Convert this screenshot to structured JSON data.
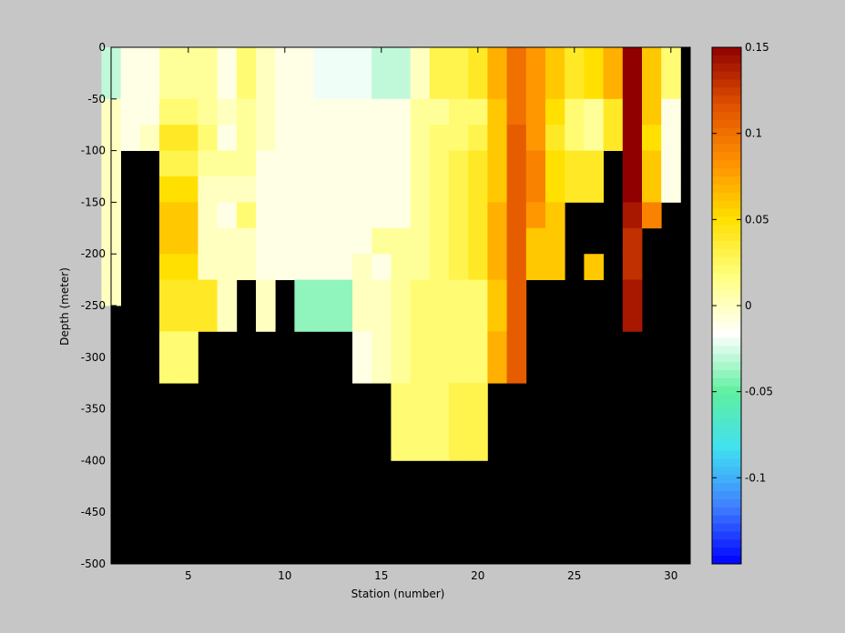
{
  "chart_data": {
    "type": "heatmap",
    "title": "",
    "xlabel": "Station (number)",
    "ylabel": "Depth (meter)",
    "xlim": [
      1,
      31
    ],
    "ylim": [
      -500,
      0
    ],
    "xticks": [
      5,
      10,
      15,
      20,
      25,
      30
    ],
    "yticks": [
      0,
      -50,
      -100,
      -150,
      -200,
      -250,
      -300,
      -350,
      -400,
      -450,
      -500
    ],
    "stations": [
      1,
      2,
      3,
      4,
      5,
      6,
      7,
      8,
      9,
      10,
      11,
      12,
      13,
      14,
      15,
      16,
      17,
      18,
      19,
      20,
      21,
      22,
      23,
      24,
      25,
      26,
      27,
      28,
      29,
      30
    ],
    "depth_bin_size_m": 25,
    "depth_rows_top_to_bottom": [
      "0 to -25",
      "-25 to -50",
      "-50 to -75",
      "-75 to -100",
      "-100 to -125",
      "-125 to -150",
      "-150 to -175",
      "-175 to -200",
      "-200 to -225",
      "-225 to -250",
      "-250 to -275",
      "-275 to -300",
      "-300 to -325",
      "-325 to -350",
      "-350 to -375",
      "-375 to -400"
    ],
    "values": [
      [
        -0.03,
        -0.01,
        -0.01,
        0.01,
        0.01,
        0.01,
        -0.01,
        0.02,
        0.0,
        -0.01,
        -0.01,
        -0.02,
        -0.02,
        -0.02,
        -0.03,
        -0.03,
        0.0,
        0.03,
        0.03,
        0.04,
        0.07,
        0.1,
        0.08,
        0.06,
        0.04,
        0.05,
        0.07,
        0.15,
        0.06,
        0.02
      ],
      [
        -0.03,
        -0.01,
        -0.01,
        0.01,
        0.01,
        0.01,
        -0.01,
        0.02,
        0.0,
        -0.01,
        -0.01,
        -0.02,
        -0.02,
        -0.02,
        -0.03,
        -0.03,
        0.0,
        0.03,
        0.03,
        0.04,
        0.07,
        0.1,
        0.08,
        0.06,
        0.04,
        0.05,
        0.07,
        0.15,
        0.06,
        0.02
      ],
      [
        0.0,
        -0.01,
        -0.01,
        0.02,
        0.02,
        0.01,
        0.0,
        0.01,
        0.0,
        -0.01,
        -0.01,
        -0.01,
        -0.01,
        -0.01,
        -0.01,
        -0.01,
        0.01,
        0.01,
        0.02,
        0.02,
        0.06,
        0.1,
        0.08,
        0.05,
        0.02,
        0.01,
        0.04,
        0.15,
        0.06,
        -0.01
      ],
      [
        0.0,
        -0.01,
        0.0,
        0.04,
        0.04,
        0.02,
        -0.01,
        0.01,
        0.0,
        -0.01,
        -0.01,
        -0.01,
        -0.01,
        -0.01,
        -0.01,
        -0.01,
        0.01,
        0.02,
        0.02,
        0.03,
        0.06,
        0.11,
        0.08,
        0.04,
        0.02,
        0.01,
        0.04,
        0.15,
        0.05,
        -0.01
      ],
      [
        0.0,
        null,
        null,
        0.03,
        0.03,
        0.01,
        0.01,
        0.01,
        -0.01,
        -0.01,
        -0.01,
        -0.01,
        -0.01,
        -0.01,
        -0.01,
        -0.01,
        0.01,
        0.02,
        0.03,
        0.04,
        0.06,
        0.11,
        0.09,
        0.05,
        0.04,
        0.04,
        null,
        0.15,
        0.06,
        -0.01
      ],
      [
        0.0,
        null,
        null,
        0.05,
        0.05,
        0.0,
        0.0,
        0.0,
        -0.01,
        -0.01,
        -0.01,
        -0.01,
        -0.01,
        -0.01,
        -0.01,
        -0.01,
        0.01,
        0.02,
        0.03,
        0.04,
        0.06,
        0.11,
        0.09,
        0.05,
        0.04,
        0.04,
        null,
        0.15,
        0.06,
        -0.01
      ],
      [
        0.0,
        null,
        null,
        0.06,
        0.06,
        0.0,
        -0.01,
        0.02,
        -0.01,
        -0.01,
        -0.01,
        -0.01,
        -0.01,
        -0.01,
        -0.01,
        -0.01,
        0.01,
        0.02,
        0.03,
        0.04,
        0.07,
        0.11,
        0.08,
        0.06,
        null,
        null,
        null,
        0.14,
        0.09,
        null
      ],
      [
        0.0,
        null,
        null,
        0.06,
        0.06,
        0.0,
        0.0,
        0.0,
        -0.01,
        -0.01,
        -0.01,
        -0.01,
        -0.01,
        -0.01,
        0.01,
        0.01,
        0.01,
        0.02,
        0.03,
        0.04,
        0.07,
        0.11,
        0.06,
        0.06,
        null,
        null,
        null,
        0.13,
        null,
        null
      ],
      [
        0.0,
        null,
        null,
        0.05,
        0.05,
        0.0,
        0.0,
        0.0,
        -0.01,
        -0.01,
        -0.01,
        -0.01,
        -0.01,
        0.0,
        -0.01,
        0.01,
        0.01,
        0.02,
        0.03,
        0.04,
        0.07,
        0.11,
        0.06,
        0.06,
        null,
        0.06,
        null,
        0.13,
        null,
        null
      ],
      [
        0.0,
        null,
        null,
        0.04,
        0.04,
        0.04,
        0.0,
        null,
        0.0,
        null,
        -0.04,
        -0.04,
        -0.04,
        0.0,
        0.0,
        0.01,
        0.02,
        0.02,
        0.02,
        0.02,
        0.06,
        0.11,
        null,
        null,
        null,
        null,
        null,
        0.14,
        null,
        null
      ],
      [
        null,
        null,
        null,
        0.04,
        0.04,
        0.04,
        0.0,
        null,
        0.0,
        null,
        -0.04,
        -0.04,
        -0.04,
        0.0,
        0.0,
        0.01,
        0.02,
        0.02,
        0.02,
        0.02,
        0.06,
        0.11,
        null,
        null,
        null,
        null,
        null,
        0.14,
        null,
        null
      ],
      [
        null,
        null,
        null,
        0.02,
        0.02,
        null,
        null,
        null,
        null,
        null,
        null,
        null,
        null,
        -0.01,
        0.0,
        0.01,
        0.02,
        0.02,
        0.02,
        0.02,
        0.07,
        0.11,
        null,
        null,
        null,
        null,
        null,
        null,
        null,
        null
      ],
      [
        null,
        null,
        null,
        0.02,
        0.02,
        null,
        null,
        null,
        null,
        null,
        null,
        null,
        null,
        -0.01,
        0.0,
        0.01,
        0.02,
        0.02,
        0.02,
        0.02,
        0.07,
        0.11,
        null,
        null,
        null,
        null,
        null,
        null,
        null,
        null
      ],
      [
        null,
        null,
        null,
        null,
        null,
        null,
        null,
        null,
        null,
        null,
        null,
        null,
        null,
        null,
        null,
        0.02,
        0.02,
        0.02,
        0.03,
        0.03,
        null,
        null,
        null,
        null,
        null,
        null,
        null,
        null,
        null,
        null
      ],
      [
        null,
        null,
        null,
        null,
        null,
        null,
        null,
        null,
        null,
        null,
        null,
        null,
        null,
        null,
        null,
        0.02,
        0.02,
        0.02,
        0.03,
        0.03,
        null,
        null,
        null,
        null,
        null,
        null,
        null,
        null,
        null,
        null
      ],
      [
        null,
        null,
        null,
        null,
        null,
        null,
        null,
        null,
        null,
        null,
        null,
        null,
        null,
        null,
        null,
        0.02,
        0.02,
        0.02,
        0.03,
        0.03,
        null,
        null,
        null,
        null,
        null,
        null,
        null,
        null,
        null,
        null
      ]
    ],
    "colorbar": {
      "range": [
        -0.15,
        0.15
      ],
      "ticks": [
        0.15,
        0.1,
        0.05,
        0,
        -0.05,
        -0.1
      ],
      "tick_labels": [
        "0.15",
        "0.1",
        "0.05",
        "0",
        "-0.05",
        "-0.1"
      ],
      "colormap": [
        "#0000ff",
        "#4080ff",
        "#40e0f0",
        "#60f0a0",
        "#ffffff",
        "#ffff80",
        "#ffe000",
        "#ff9000",
        "#e05000",
        "#900000"
      ]
    },
    "missing_color": "#000000",
    "grid": false,
    "legend": "colorbar-right"
  }
}
